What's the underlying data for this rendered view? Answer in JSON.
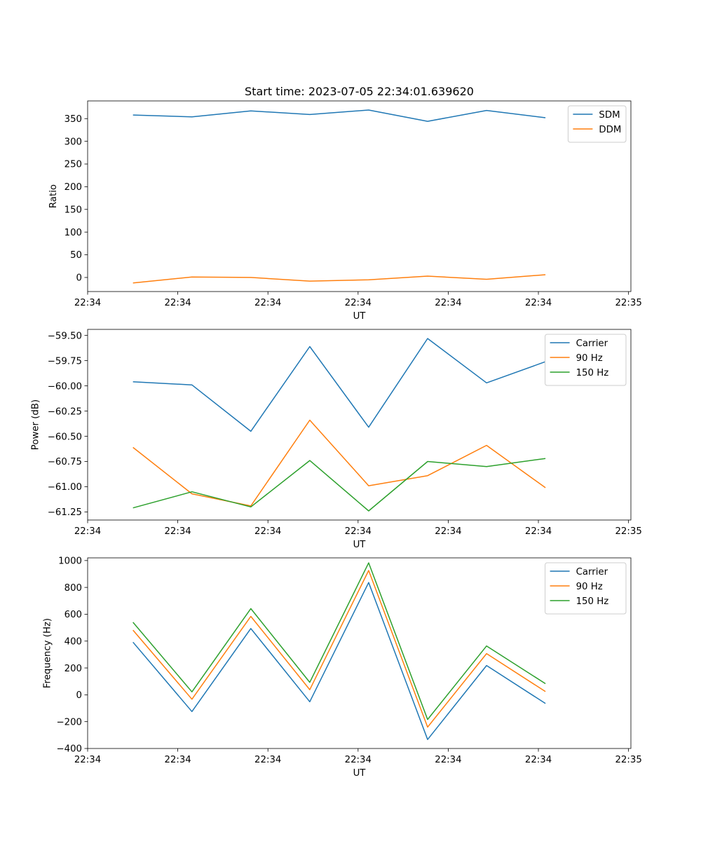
{
  "figure": {
    "title": "Start time: 2023-07-05 22:34:01.639620"
  },
  "chart_data": [
    {
      "type": "line",
      "ylabel": "Ratio",
      "xlabel": "UT",
      "x": [
        1,
        2,
        3,
        4,
        5,
        6,
        7,
        8
      ],
      "xlim": [
        0.23,
        9.45
      ],
      "ylim": [
        -31,
        389
      ],
      "xticks": [
        {
          "value": 0.23,
          "label": "22:34"
        },
        {
          "value": 1.76,
          "label": "22:34"
        },
        {
          "value": 3.29,
          "label": "22:34"
        },
        {
          "value": 4.82,
          "label": "22:34"
        },
        {
          "value": 6.35,
          "label": "22:34"
        },
        {
          "value": 7.88,
          "label": "22:34"
        },
        {
          "value": 9.41,
          "label": "22:35"
        }
      ],
      "yticks": [
        {
          "value": 0,
          "label": "0"
        },
        {
          "value": 50,
          "label": "50"
        },
        {
          "value": 100,
          "label": "100"
        },
        {
          "value": 150,
          "label": "150"
        },
        {
          "value": 200,
          "label": "200"
        },
        {
          "value": 250,
          "label": "250"
        },
        {
          "value": 300,
          "label": "300"
        },
        {
          "value": 350,
          "label": "350"
        }
      ],
      "series": [
        {
          "name": "SDM",
          "color": "#1f77b4",
          "values": [
            358,
            354,
            367,
            359,
            369,
            344,
            368,
            352
          ]
        },
        {
          "name": "DDM",
          "color": "#ff7f0e",
          "values": [
            -12,
            1,
            0,
            -8,
            -5,
            3,
            -4,
            6
          ]
        }
      ],
      "legend": "top-right"
    },
    {
      "type": "line",
      "ylabel": "Power (dB)",
      "xlabel": "UT",
      "x": [
        1,
        2,
        3,
        4,
        5,
        6,
        7,
        8
      ],
      "xlim": [
        0.23,
        9.45
      ],
      "ylim": [
        -61.33,
        -59.44
      ],
      "xticks": [
        {
          "value": 0.23,
          "label": "22:34"
        },
        {
          "value": 1.76,
          "label": "22:34"
        },
        {
          "value": 3.29,
          "label": "22:34"
        },
        {
          "value": 4.82,
          "label": "22:34"
        },
        {
          "value": 6.35,
          "label": "22:34"
        },
        {
          "value": 7.88,
          "label": "22:34"
        },
        {
          "value": 9.41,
          "label": "22:35"
        }
      ],
      "yticks": [
        {
          "value": -61.25,
          "label": "−61.25"
        },
        {
          "value": -61.0,
          "label": "−61.00"
        },
        {
          "value": -60.75,
          "label": "−60.75"
        },
        {
          "value": -60.5,
          "label": "−60.50"
        },
        {
          "value": -60.25,
          "label": "−60.25"
        },
        {
          "value": -60.0,
          "label": "−60.00"
        },
        {
          "value": -59.75,
          "label": "−59.75"
        },
        {
          "value": -59.5,
          "label": "−59.50"
        }
      ],
      "series": [
        {
          "name": "Carrier",
          "color": "#1f77b4",
          "values": [
            -59.96,
            -59.99,
            -60.45,
            -59.61,
            -60.41,
            -59.53,
            -59.97,
            -59.76
          ]
        },
        {
          "name": "90 Hz",
          "color": "#ff7f0e",
          "values": [
            -60.61,
            -61.07,
            -61.19,
            -60.34,
            -60.99,
            -60.89,
            -60.59,
            -61.01
          ]
        },
        {
          "name": "150 Hz",
          "color": "#2ca02c",
          "values": [
            -61.21,
            -61.05,
            -61.2,
            -60.74,
            -61.24,
            -60.75,
            -60.8,
            -60.72
          ]
        }
      ],
      "legend": "top-right"
    },
    {
      "type": "line",
      "ylabel": "Frequency (Hz)",
      "xlabel": "UT",
      "x": [
        1,
        2,
        3,
        4,
        5,
        6,
        7,
        8
      ],
      "xlim": [
        0.23,
        9.45
      ],
      "ylim": [
        -400,
        1020
      ],
      "xticks": [
        {
          "value": 0.23,
          "label": "22:34"
        },
        {
          "value": 1.76,
          "label": "22:34"
        },
        {
          "value": 3.29,
          "label": "22:34"
        },
        {
          "value": 4.82,
          "label": "22:34"
        },
        {
          "value": 6.35,
          "label": "22:34"
        },
        {
          "value": 7.88,
          "label": "22:34"
        },
        {
          "value": 9.41,
          "label": "22:35"
        }
      ],
      "yticks": [
        {
          "value": -400,
          "label": "−400"
        },
        {
          "value": -200,
          "label": "−200"
        },
        {
          "value": 0,
          "label": "0"
        },
        {
          "value": 200,
          "label": "200"
        },
        {
          "value": 400,
          "label": "400"
        },
        {
          "value": 600,
          "label": "600"
        },
        {
          "value": 800,
          "label": "800"
        },
        {
          "value": 1000,
          "label": "1000"
        }
      ],
      "series": [
        {
          "name": "Carrier",
          "color": "#1f77b4",
          "values": [
            392,
            -125,
            494,
            -52,
            836,
            -333,
            218,
            -65
          ]
        },
        {
          "name": "90 Hz",
          "color": "#ff7f0e",
          "values": [
            482,
            -33,
            584,
            38,
            926,
            -241,
            307,
            24
          ]
        },
        {
          "name": "150 Hz",
          "color": "#2ca02c",
          "values": [
            540,
            22,
            642,
            93,
            983,
            -184,
            364,
            83
          ]
        }
      ],
      "legend": "top-right"
    }
  ]
}
